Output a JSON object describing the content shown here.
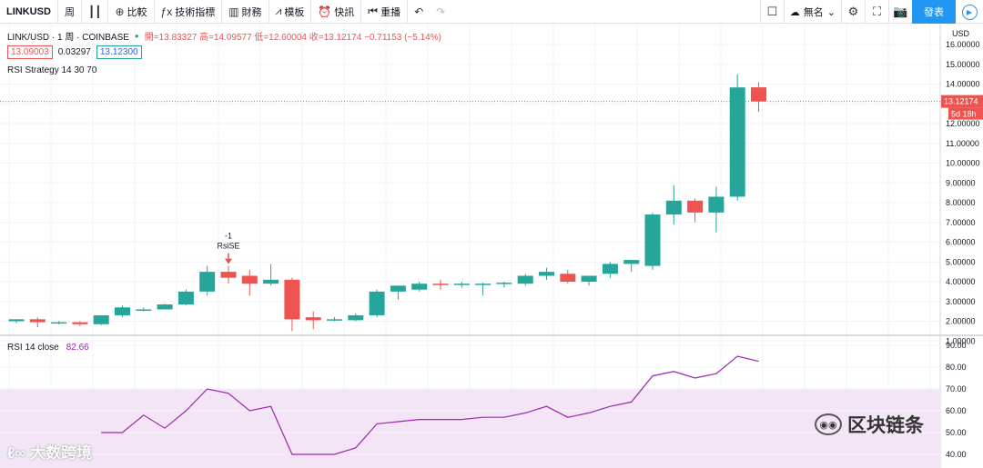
{
  "toolbar": {
    "symbol": "LINKUSD",
    "interval": "周",
    "compare": "比較",
    "indicators": "技術指標",
    "financials": "財務",
    "templates": "模板",
    "alert": "快訊",
    "replay": "重播",
    "layout_name": "無名",
    "publish": "發表"
  },
  "legend": {
    "title": "LINK/USD · 1 周 · COINBASE",
    "ohlc": "開=13.83327 高=14.09577 低=12.60004 收=13.12174 −0.71153 (−5.14%)",
    "bid": "13.09003",
    "spread": "0.03297",
    "ask": "13.12300",
    "strategy": "RSI Strategy 14 30 70"
  },
  "rsi": {
    "label": "RSI 14 close",
    "value": "82.66",
    "series": [
      50,
      50,
      58,
      52,
      60,
      70,
      68,
      60,
      62,
      40,
      40,
      40,
      43,
      54,
      55,
      56,
      56,
      56,
      57,
      57,
      59,
      62,
      57,
      59,
      62,
      64,
      76,
      78,
      75,
      77,
      85,
      82.66
    ],
    "ticks": [
      "90.00",
      "80.00",
      "70.00",
      "60.00",
      "50.00",
      "40.00"
    ],
    "band": [
      30,
      70
    ]
  },
  "price_axis": {
    "unit": "USD",
    "ticks": [
      "16.00000",
      "15.00000",
      "14.00000",
      "13.00000",
      "12.00000",
      "11.00000",
      "10.00000",
      "9.00000",
      "8.00000",
      "7.00000",
      "6.00000",
      "5.00000",
      "4.00000",
      "3.00000",
      "2.00000",
      "1.00000"
    ],
    "last_price": "13.12174",
    "countdown": "5d 18h"
  },
  "signal": {
    "label_top": "-1",
    "label_bottom": "RsiSE"
  },
  "colors": {
    "up": "#26a69a",
    "down": "#ef5350",
    "rsi_line": "#9c27b0",
    "rsi_band": "#f3e5f5",
    "accent": "#2196f3"
  },
  "chart_data": {
    "type": "candlestick",
    "ylim": [
      0.5,
      16.2
    ],
    "candles": [
      {
        "o": 2.0,
        "h": 2.1,
        "l": 1.9,
        "c": 2.1
      },
      {
        "o": 2.1,
        "h": 2.2,
        "l": 1.7,
        "c": 1.95
      },
      {
        "o": 1.95,
        "h": 2.0,
        "l": 1.85,
        "c": 1.95
      },
      {
        "o": 1.95,
        "h": 2.0,
        "l": 1.75,
        "c": 1.85
      },
      {
        "o": 1.85,
        "h": 2.3,
        "l": 1.8,
        "c": 2.3
      },
      {
        "o": 2.3,
        "h": 2.8,
        "l": 2.2,
        "c": 2.7
      },
      {
        "o": 2.6,
        "h": 2.7,
        "l": 2.5,
        "c": 2.6
      },
      {
        "o": 2.6,
        "h": 2.9,
        "l": 2.6,
        "c": 2.85
      },
      {
        "o": 2.85,
        "h": 3.6,
        "l": 2.8,
        "c": 3.5
      },
      {
        "o": 3.5,
        "h": 4.8,
        "l": 3.3,
        "c": 4.5
      },
      {
        "o": 4.5,
        "h": 4.8,
        "l": 3.9,
        "c": 4.2
      },
      {
        "o": 4.3,
        "h": 4.6,
        "l": 3.3,
        "c": 3.9
      },
      {
        "o": 3.9,
        "h": 4.9,
        "l": 3.8,
        "c": 4.1
      },
      {
        "o": 4.1,
        "h": 4.2,
        "l": 1.5,
        "c": 2.1
      },
      {
        "o": 2.2,
        "h": 2.5,
        "l": 1.6,
        "c": 2.05
      },
      {
        "o": 2.05,
        "h": 2.2,
        "l": 2.0,
        "c": 2.1
      },
      {
        "o": 2.05,
        "h": 2.4,
        "l": 2.0,
        "c": 2.3
      },
      {
        "o": 2.3,
        "h": 3.6,
        "l": 2.2,
        "c": 3.5
      },
      {
        "o": 3.5,
        "h": 3.8,
        "l": 3.1,
        "c": 3.8
      },
      {
        "o": 3.6,
        "h": 4.0,
        "l": 3.5,
        "c": 3.9
      },
      {
        "o": 3.9,
        "h": 4.1,
        "l": 3.6,
        "c": 3.85
      },
      {
        "o": 3.85,
        "h": 4.0,
        "l": 3.7,
        "c": 3.9
      },
      {
        "o": 3.85,
        "h": 3.95,
        "l": 3.3,
        "c": 3.9
      },
      {
        "o": 3.9,
        "h": 4.0,
        "l": 3.7,
        "c": 3.95
      },
      {
        "o": 3.9,
        "h": 4.4,
        "l": 3.8,
        "c": 4.3
      },
      {
        "o": 4.3,
        "h": 4.7,
        "l": 4.1,
        "c": 4.5
      },
      {
        "o": 4.4,
        "h": 4.6,
        "l": 3.9,
        "c": 4.0
      },
      {
        "o": 4.0,
        "h": 4.3,
        "l": 3.8,
        "c": 4.3
      },
      {
        "o": 4.4,
        "h": 5.0,
        "l": 4.2,
        "c": 4.9
      },
      {
        "o": 4.9,
        "h": 5.1,
        "l": 4.5,
        "c": 5.1
      },
      {
        "o": 4.8,
        "h": 7.5,
        "l": 4.6,
        "c": 7.4
      },
      {
        "o": 7.4,
        "h": 8.9,
        "l": 6.9,
        "c": 8.1
      },
      {
        "o": 8.1,
        "h": 8.2,
        "l": 7.0,
        "c": 7.5
      },
      {
        "o": 7.5,
        "h": 8.8,
        "l": 6.5,
        "c": 8.3
      },
      {
        "o": 8.3,
        "h": 14.5,
        "l": 8.1,
        "c": 13.83
      },
      {
        "o": 13.83327,
        "h": 14.09577,
        "l": 12.60004,
        "c": 13.12174
      }
    ],
    "signal_index": 10
  }
}
